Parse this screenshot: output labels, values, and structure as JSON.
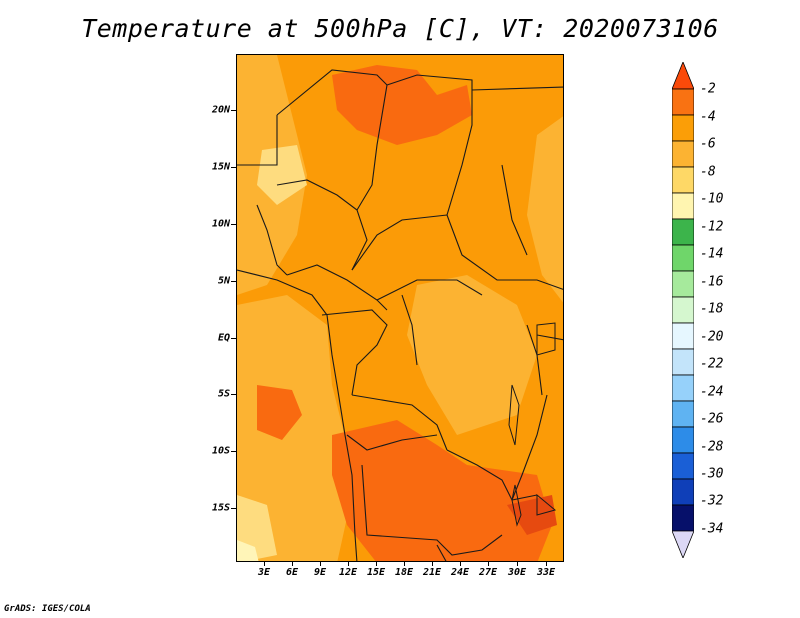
{
  "title": "Temperature at 500hPa [C], VT: 2020073106",
  "credit": "GrADS: IGES/COLA",
  "map": {
    "lat_labels": [
      "20N",
      "15N",
      "10N",
      "5N",
      "EQ",
      "5S",
      "10S",
      "15S"
    ],
    "lon_labels": [
      "3E",
      "6E",
      "9E",
      "12E",
      "15E",
      "18E",
      "21E",
      "24E",
      "27E",
      "30E",
      "33E"
    ],
    "fill_colors": {
      "-2_to_-4": "#f96a10",
      "-4_to_-6": "#fb9b07",
      "-6_to_-8": "#fcb332",
      "-8_to_-10": "#fedc7f",
      "-10_to_-12": "#fff5b8"
    }
  },
  "colorbar": {
    "labels": [
      "-2",
      "-4",
      "-6",
      "-8",
      "-10",
      "-12",
      "-14",
      "-16",
      "-18",
      "-20",
      "-22",
      "-24",
      "-26",
      "-28",
      "-30",
      "-32",
      "-34"
    ],
    "colors": [
      "#fa4a0a",
      "#f97212",
      "#fb9e07",
      "#fcb332",
      "#fed866",
      "#fff5b0",
      "#3cb44b",
      "#6fd66a",
      "#a6ea9c",
      "#d5f7cf",
      "#e6f7ff",
      "#c3e4fa",
      "#96d1fa",
      "#5fb3f2",
      "#2d8ce8",
      "#1a5fd6",
      "#0f3fb8",
      "#06106a",
      "#dcd8f5"
    ]
  }
}
